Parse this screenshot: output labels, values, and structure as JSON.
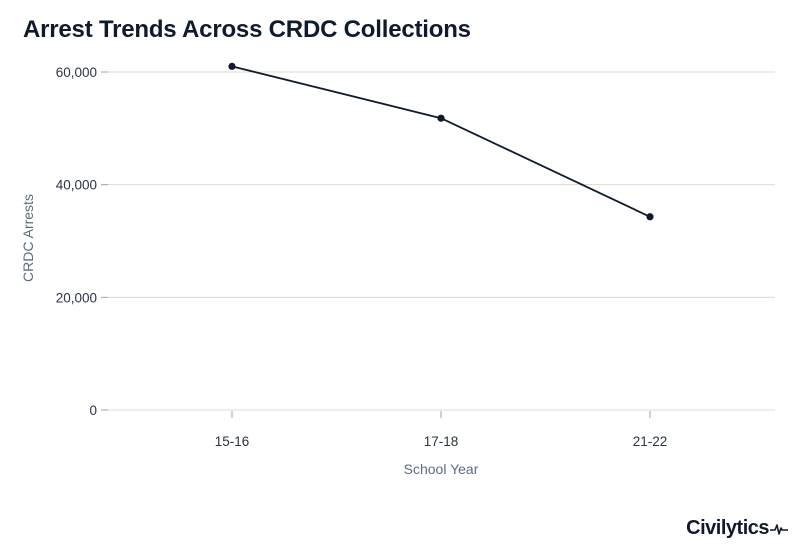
{
  "title": "Arrest Trends Across CRDC Collections",
  "chart_data": {
    "type": "line",
    "categories": [
      "15-16",
      "17-18",
      "21-22"
    ],
    "values": [
      61000,
      51800,
      34300
    ],
    "xlabel": "School Year",
    "ylabel": "CRDC Arrests",
    "ylim": [
      0,
      65000
    ],
    "y_ticks": [
      0,
      20000,
      40000,
      60000
    ],
    "y_tick_labels": [
      "0",
      "20,000",
      "40,000",
      "60,000"
    ],
    "grid": true,
    "line_color": "#0f1b2d",
    "grid_color": "#dcdcc8"
  },
  "logo": {
    "text": "Civilytics",
    "icon": "heartbeat-pulse-icon"
  }
}
